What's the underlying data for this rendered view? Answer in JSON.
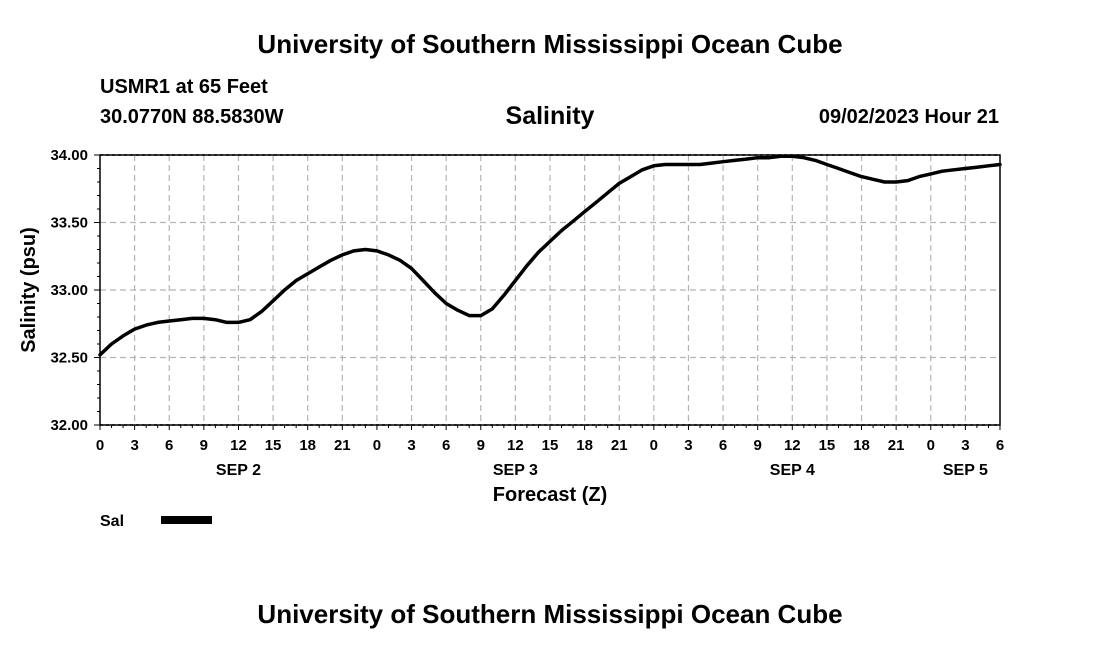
{
  "page": {
    "top_title": "University of Southern Mississippi Ocean Cube",
    "bottom_title": "University of Southern Mississippi Ocean Cube",
    "station": "USMR1 at 65 Feet",
    "coordinates": "30.0770N  88.5830W",
    "datetime": "09/02/2023 Hour 21"
  },
  "chart_data": {
    "type": "line",
    "title": "Salinity",
    "xlabel": "Forecast (Z)",
    "ylabel": "Salinity (psu)",
    "xlim": [
      0,
      78
    ],
    "ylim": [
      32.0,
      34.0
    ],
    "y_ticks": [
      32.0,
      32.5,
      33.0,
      33.5,
      34.0
    ],
    "y_tick_labels": [
      "32.00",
      "32.50",
      "33.00",
      "33.50",
      "34.00"
    ],
    "x_ticks": [
      0,
      3,
      6,
      9,
      12,
      15,
      18,
      21,
      24,
      27,
      30,
      33,
      36,
      39,
      42,
      45,
      48,
      51,
      54,
      57,
      60,
      63,
      66,
      69,
      72,
      75,
      78
    ],
    "x_tick_labels": [
      "0",
      "3",
      "6",
      "9",
      "12",
      "15",
      "18",
      "21",
      "0",
      "3",
      "6",
      "9",
      "12",
      "15",
      "18",
      "21",
      "0",
      "3",
      "6",
      "9",
      "12",
      "15",
      "18",
      "21",
      "0",
      "3",
      "6"
    ],
    "day_labels": [
      {
        "label": "SEP 2",
        "x": 12
      },
      {
        "label": "SEP 3",
        "x": 36
      },
      {
        "label": "SEP 4",
        "x": 60
      },
      {
        "label": "SEP 5",
        "x": 75
      }
    ],
    "grid": true,
    "legend": [
      {
        "name": "Sal",
        "color": "#000000"
      }
    ],
    "series": [
      {
        "name": "Sal",
        "x": [
          0,
          1,
          2,
          3,
          4,
          5,
          6,
          7,
          8,
          9,
          10,
          11,
          12,
          13,
          14,
          15,
          16,
          17,
          18,
          19,
          20,
          21,
          22,
          23,
          24,
          25,
          26,
          27,
          28,
          29,
          30,
          31,
          32,
          33,
          34,
          35,
          36,
          37,
          38,
          39,
          40,
          41,
          42,
          43,
          44,
          45,
          46,
          47,
          48,
          49,
          50,
          51,
          52,
          53,
          54,
          55,
          56,
          57,
          58,
          59,
          60,
          61,
          62,
          63,
          64,
          65,
          66,
          67,
          68,
          69,
          70,
          71,
          72,
          73,
          74,
          75,
          76,
          77,
          78
        ],
        "values": [
          32.52,
          32.6,
          32.66,
          32.71,
          32.74,
          32.76,
          32.77,
          32.78,
          32.79,
          32.79,
          32.78,
          32.76,
          32.76,
          32.78,
          32.84,
          32.92,
          33.0,
          33.07,
          33.12,
          33.17,
          33.22,
          33.26,
          33.29,
          33.3,
          33.29,
          33.26,
          33.22,
          33.16,
          33.07,
          32.98,
          32.9,
          32.85,
          32.81,
          32.81,
          32.86,
          32.96,
          33.07,
          33.18,
          33.28,
          33.36,
          33.44,
          33.51,
          33.58,
          33.65,
          33.72,
          33.79,
          33.84,
          33.89,
          33.92,
          33.93,
          33.93,
          33.93,
          33.93,
          33.94,
          33.95,
          33.96,
          33.97,
          33.98,
          33.98,
          33.99,
          33.99,
          33.98,
          33.96,
          33.93,
          33.9,
          33.87,
          33.84,
          33.82,
          33.8,
          33.8,
          33.81,
          33.84,
          33.86,
          33.88,
          33.89,
          33.9,
          33.91,
          33.92,
          33.93
        ],
        "color": "#000000"
      }
    ]
  }
}
